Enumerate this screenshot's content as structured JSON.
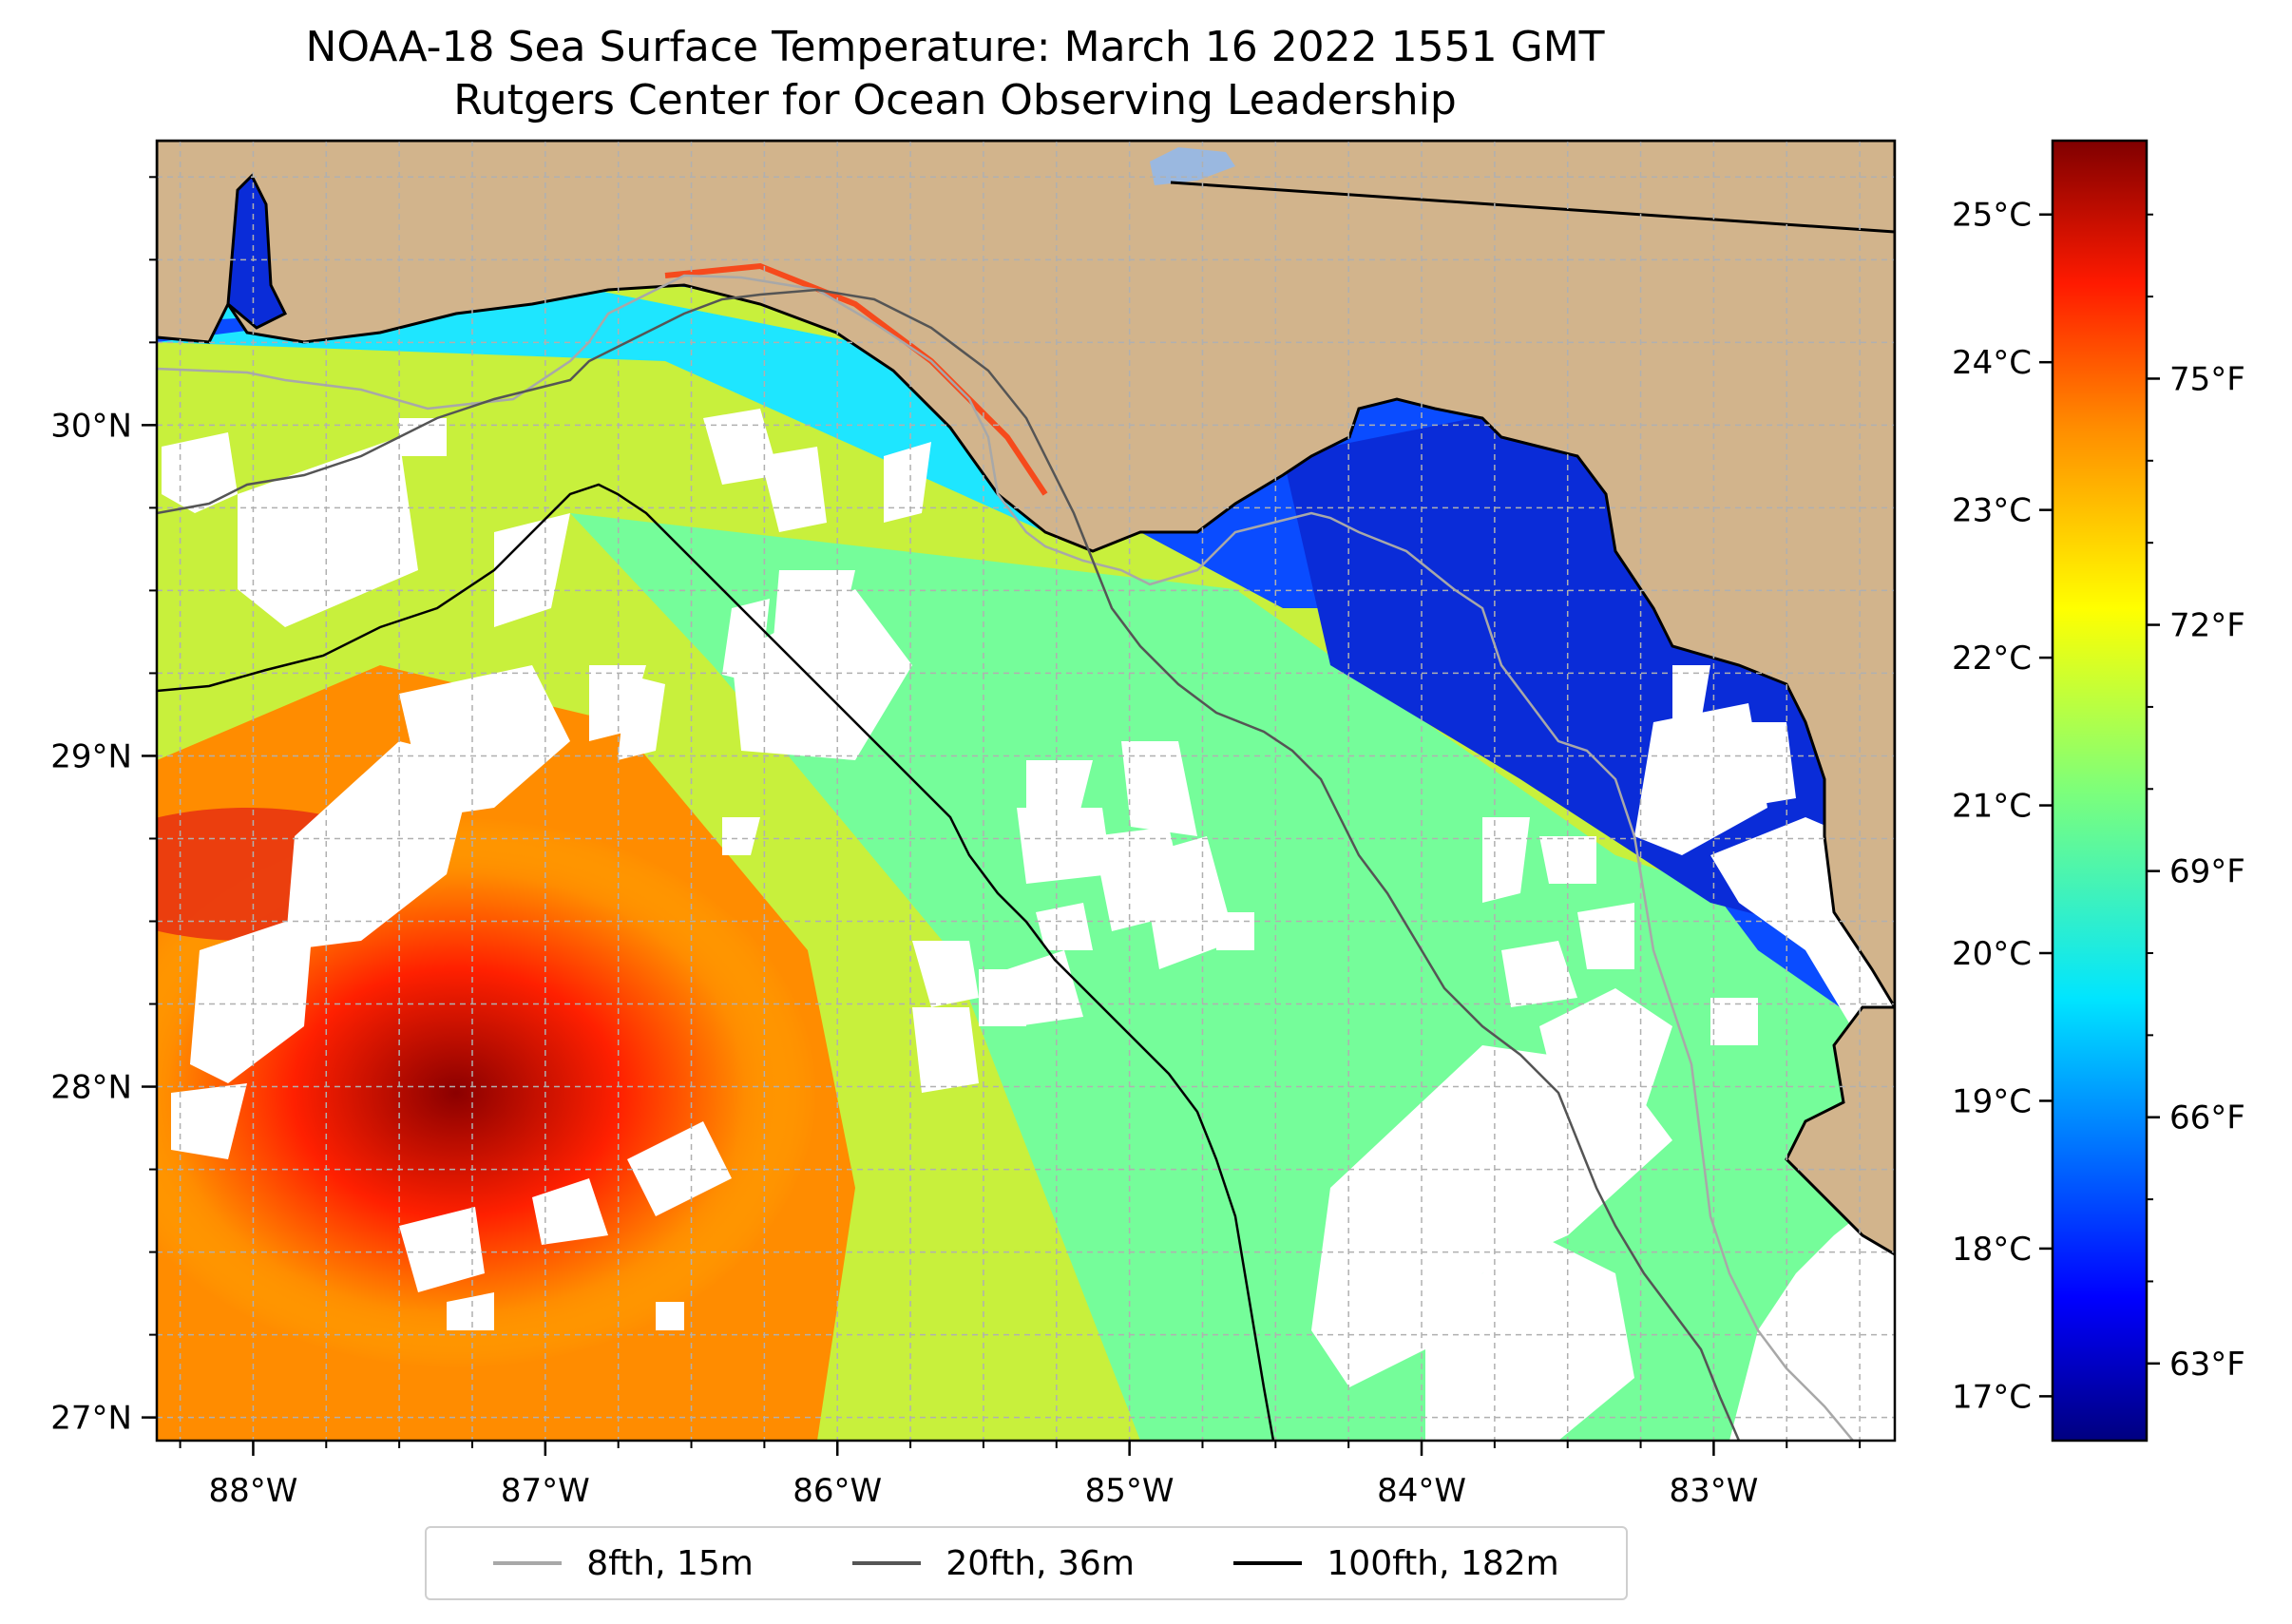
{
  "title": {
    "line1": "NOAA-18 Sea Surface Temperature: March 16 2022 1551 GMT",
    "line2": "Rutgers Center for Ocean Observing Leadership"
  },
  "colors": {
    "land": "#d2b48c",
    "coastline": "#000000",
    "grid": "#b0b0b0",
    "cloud_mask": "#ffffff"
  },
  "map": {
    "lon_range": [
      -88.33,
      -82.38
    ],
    "lat_range": [
      26.93,
      30.86
    ],
    "lon_ticks": [
      {
        "value": -88,
        "label": "88°W"
      },
      {
        "value": -87,
        "label": "87°W"
      },
      {
        "value": -86,
        "label": "86°W"
      },
      {
        "value": -85,
        "label": "85°W"
      },
      {
        "value": -84,
        "label": "84°W"
      },
      {
        "value": -83,
        "label": "83°W"
      }
    ],
    "lat_ticks": [
      {
        "value": 27,
        "label": "27°N"
      },
      {
        "value": 28,
        "label": "28°N"
      },
      {
        "value": 29,
        "label": "29°N"
      },
      {
        "value": 30,
        "label": "30°N"
      }
    ]
  },
  "colorbar": {
    "colormap": "jet",
    "celsius_ticks": [
      {
        "value": 17,
        "label": "17°C"
      },
      {
        "value": 18,
        "label": "18°C"
      },
      {
        "value": 19,
        "label": "19°C"
      },
      {
        "value": 20,
        "label": "20°C"
      },
      {
        "value": 21,
        "label": "21°C"
      },
      {
        "value": 22,
        "label": "22°C"
      },
      {
        "value": 23,
        "label": "23°C"
      },
      {
        "value": 24,
        "label": "24°C"
      },
      {
        "value": 25,
        "label": "25°C"
      }
    ],
    "fahrenheit_ticks": [
      {
        "value": 63,
        "label": "63°F"
      },
      {
        "value": 66,
        "label": "66°F"
      },
      {
        "value": 69,
        "label": "69°F"
      },
      {
        "value": 72,
        "label": "72°F"
      },
      {
        "value": 75,
        "label": "75°F"
      }
    ],
    "range_c": [
      16.7,
      25.5
    ]
  },
  "legend": {
    "items": [
      {
        "label": "8fth, 15m",
        "color": "#a8a8a8"
      },
      {
        "label": "20fth, 36m",
        "color": "#555555"
      },
      {
        "label": "100fth, 182m",
        "color": "#000000"
      }
    ]
  }
}
